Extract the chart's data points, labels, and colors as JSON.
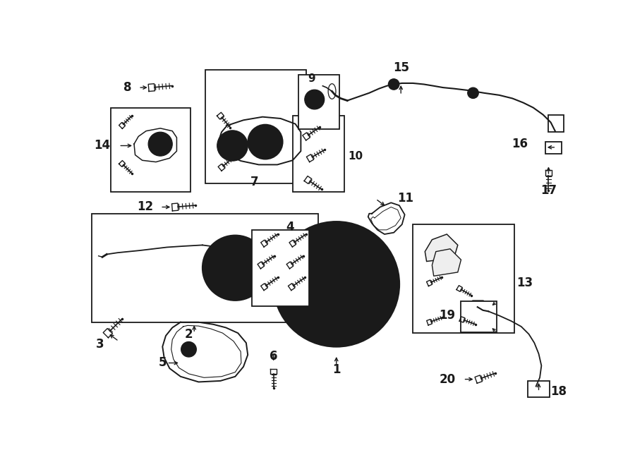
{
  "background_color": "#ffffff",
  "line_color": "#1a1a1a",
  "figure_width": 9.0,
  "figure_height": 6.62,
  "dpi": 100,
  "xlim": [
    0,
    900
  ],
  "ylim": [
    0,
    662
  ]
}
